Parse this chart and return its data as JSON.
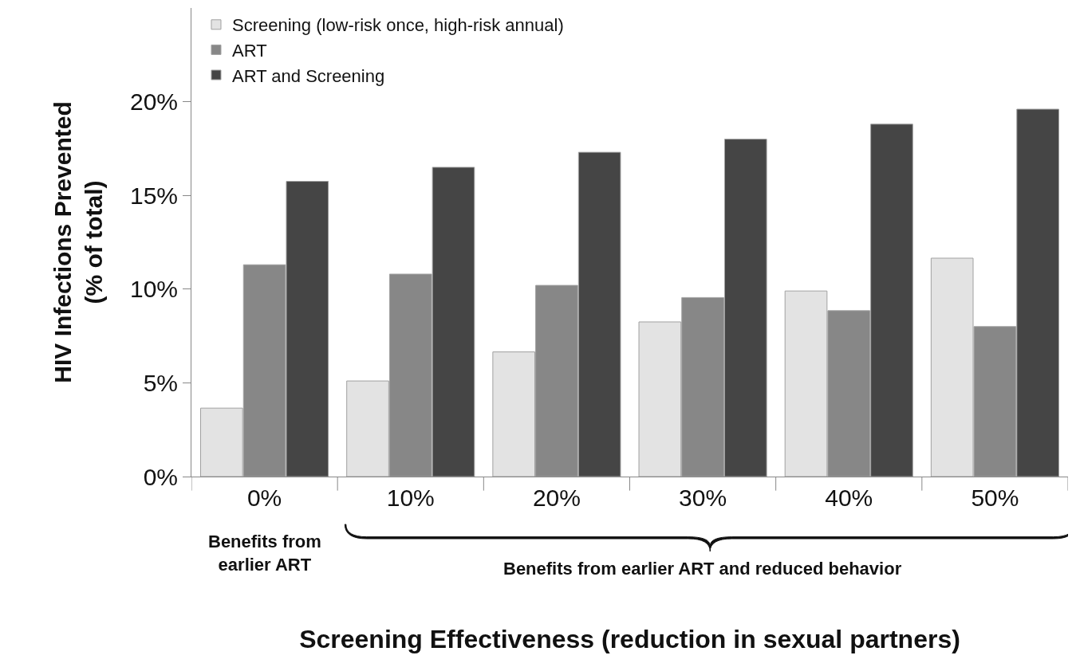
{
  "chart_data": {
    "type": "bar",
    "categories": [
      "0%",
      "10%",
      "20%",
      "30%",
      "40%",
      "50%"
    ],
    "series": [
      {
        "name": "Screening (low-risk once, high-risk annual)",
        "color": "#e3e3e3",
        "values": [
          3.65,
          5.1,
          6.65,
          8.25,
          9.9,
          11.65
        ]
      },
      {
        "name": "ART",
        "color": "#878787",
        "values": [
          11.3,
          10.8,
          10.2,
          9.55,
          8.85,
          8.0
        ]
      },
      {
        "name": "ART and Screening",
        "color": "#454545",
        "values": [
          15.75,
          16.5,
          17.3,
          18.0,
          18.8,
          19.6
        ]
      }
    ],
    "ylabel": "HIV Infections Prevented\n(% of total)",
    "xlabel": "Screening Effectiveness (reduction in sexual partners)",
    "ylim": [
      0,
      25
    ],
    "yticks": [
      {
        "value": 0,
        "label": "0%"
      },
      {
        "value": 5,
        "label": "5%"
      },
      {
        "value": 10,
        "label": "10%"
      },
      {
        "value": 15,
        "label": "15%"
      },
      {
        "value": 20,
        "label": "20%"
      }
    ],
    "annotations": [
      "Benefits from\nearlier ART",
      "Benefits from earlier ART and reduced behavior"
    ],
    "legend": "top left"
  }
}
